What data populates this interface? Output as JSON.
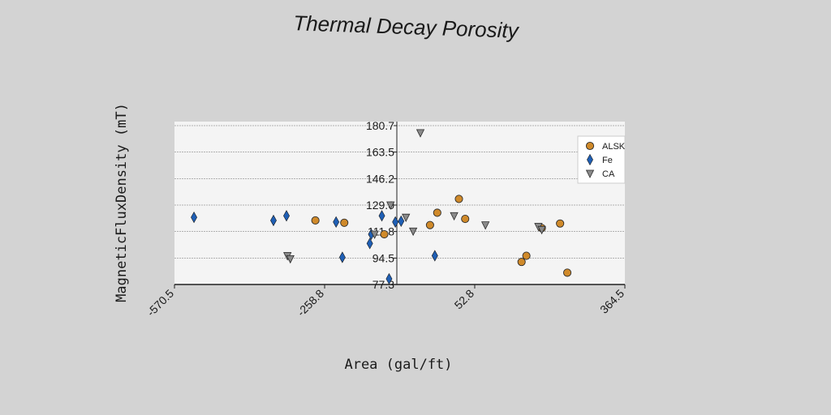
{
  "chart_data": {
    "type": "scatter",
    "title": "Thermal Decay Porosity",
    "xlabel": "Area (gal/ft)",
    "ylabel": "MagneticFluxDensity (mT)",
    "xlim": [
      -570.5,
      364.5
    ],
    "ylim": [
      77.3,
      180.7
    ],
    "x_ticks": [
      "-570.5",
      "-258.8",
      "52.8",
      "364.5"
    ],
    "y_ticks": [
      "77.3",
      "94.5",
      "111.8",
      "129.0",
      "146.2",
      "163.5",
      "180.7"
    ],
    "grid": "horizontal",
    "legend_position": "top-right",
    "series": [
      {
        "name": "ALSK",
        "marker": "circle",
        "color": "#d08a2a",
        "points": [
          [
            -278,
            119
          ],
          [
            -218,
            117.5
          ],
          [
            -135,
            110
          ],
          [
            -40,
            116
          ],
          [
            -25,
            124
          ],
          [
            20,
            133
          ],
          [
            33,
            120
          ],
          [
            150,
            92
          ],
          [
            160,
            96
          ],
          [
            192,
            114
          ],
          [
            230,
            117
          ],
          [
            245,
            85
          ]
        ]
      },
      {
        "name": "Fe",
        "marker": "diamond",
        "color": "#1f5fb5",
        "points": [
          [
            -530,
            121
          ],
          [
            -365,
            119
          ],
          [
            -338,
            122
          ],
          [
            -235,
            118
          ],
          [
            -222,
            95
          ],
          [
            -165,
            104
          ],
          [
            -162,
            110
          ],
          [
            -140,
            122
          ],
          [
            -125,
            81
          ],
          [
            -112,
            118
          ],
          [
            -100,
            118.5
          ],
          [
            -30,
            96
          ]
        ]
      },
      {
        "name": "CA",
        "marker": "triangle-down",
        "color": "#8a8a8a",
        "points": [
          [
            -336,
            96
          ],
          [
            -330,
            94
          ],
          [
            -155,
            110
          ],
          [
            -122,
            129
          ],
          [
            -90,
            121
          ],
          [
            -75,
            112
          ],
          [
            -60,
            176
          ],
          [
            10,
            122
          ],
          [
            75,
            116
          ],
          [
            185,
            115
          ],
          [
            192,
            113
          ]
        ]
      }
    ]
  }
}
